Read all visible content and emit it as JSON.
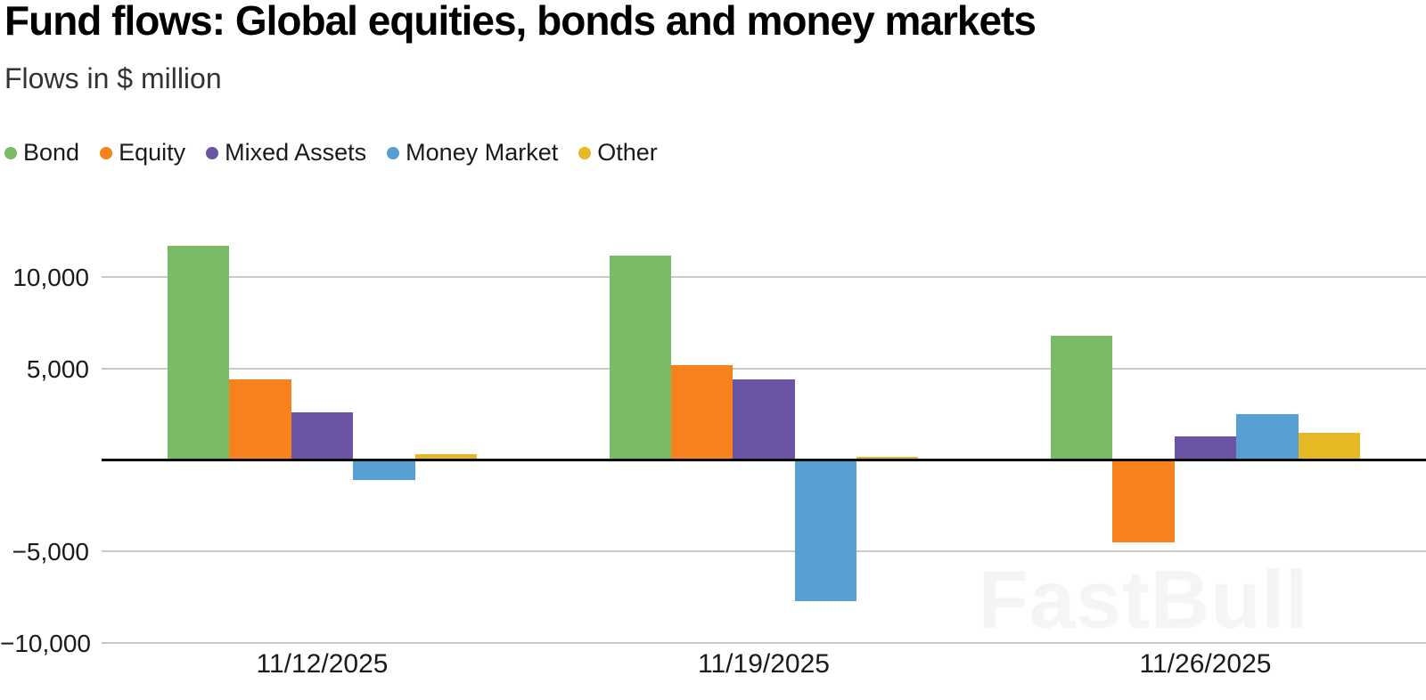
{
  "header": {
    "title": "Fund flows: Global equities, bonds and money markets",
    "subtitle": "Flows in $ million"
  },
  "watermark": {
    "text": "FastBull"
  },
  "colors": {
    "background": "#ffffff",
    "title_text": "#000000",
    "subtitle_text": "#333333",
    "tick_text": "#1a1a1a",
    "gridline": "#c9c9c9",
    "zero_line": "#0a0a0a"
  },
  "chart_data": {
    "type": "bar",
    "title": "Fund flows: Global equities, bonds and money markets",
    "subtitle": "Flows in $ million",
    "xlabel": "",
    "ylabel": "Flows in $ million",
    "categories": [
      "11/12/2025",
      "11/19/2025",
      "11/26/2025"
    ],
    "series": [
      {
        "name": "Bond",
        "color": "#7bba66",
        "values": [
          11700,
          11200,
          6800
        ]
      },
      {
        "name": "Equity",
        "color": "#f8821e",
        "values": [
          4400,
          5200,
          -4500
        ]
      },
      {
        "name": "Mixed Assets",
        "color": "#6a54a3",
        "values": [
          2600,
          4400,
          1300
        ]
      },
      {
        "name": "Money Market",
        "color": "#579fd3",
        "values": [
          -1100,
          -7700,
          2500
        ]
      },
      {
        "name": "Other",
        "color": "#e6b824",
        "values": [
          300,
          150,
          1500
        ]
      }
    ],
    "y_ticks": [
      {
        "value": 10000,
        "label": "10,000"
      },
      {
        "value": 5000,
        "label": "5,000"
      },
      {
        "value": -5000,
        "label": "−5,000"
      },
      {
        "value": -10000,
        "label": "−10,000"
      }
    ],
    "ylim": [
      -10500,
      12000
    ],
    "grid": true,
    "legend_position": "top-left",
    "legend_entries": [
      "Bond",
      "Equity",
      "Mixed Assets",
      "Money Market",
      "Other"
    ]
  }
}
